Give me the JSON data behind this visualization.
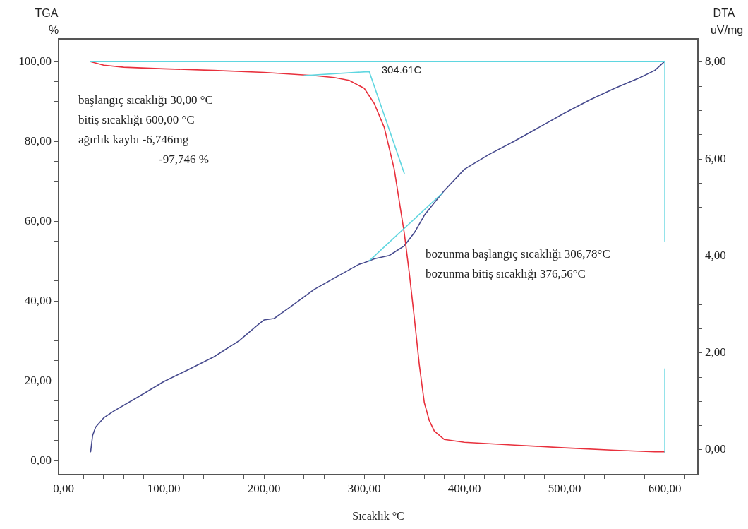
{
  "chart_data": {
    "type": "line",
    "xlabel": "Sıcaklık °C",
    "ylabel": "TGA %",
    "y2label": "DTA uV/mg",
    "marker": "none",
    "grid": false,
    "legend": false,
    "xlim": [
      -5,
      633
    ],
    "xticks": [
      {
        "value": 0,
        "label": "0,00"
      },
      {
        "value": 20,
        "label": null
      },
      {
        "value": 40,
        "label": null
      },
      {
        "value": 60,
        "label": null
      },
      {
        "value": 80,
        "label": null
      },
      {
        "value": 100,
        "label": "100,00"
      },
      {
        "value": 120,
        "label": null
      },
      {
        "value": 140,
        "label": null
      },
      {
        "value": 160,
        "label": null
      },
      {
        "value": 180,
        "label": null
      },
      {
        "value": 200,
        "label": "200,00"
      },
      {
        "value": 220,
        "label": null
      },
      {
        "value": 240,
        "label": null
      },
      {
        "value": 260,
        "label": null
      },
      {
        "value": 280,
        "label": null
      },
      {
        "value": 300,
        "label": "300,00"
      },
      {
        "value": 320,
        "label": null
      },
      {
        "value": 340,
        "label": null
      },
      {
        "value": 360,
        "label": null
      },
      {
        "value": 380,
        "label": null
      },
      {
        "value": 400,
        "label": "400,00"
      },
      {
        "value": 420,
        "label": null
      },
      {
        "value": 440,
        "label": null
      },
      {
        "value": 460,
        "label": null
      },
      {
        "value": 480,
        "label": null
      },
      {
        "value": 500,
        "label": "500,00"
      },
      {
        "value": 520,
        "label": null
      },
      {
        "value": 540,
        "label": null
      },
      {
        "value": 560,
        "label": null
      },
      {
        "value": 580,
        "label": null
      },
      {
        "value": 600,
        "label": "600,00"
      },
      {
        "value": 620,
        "label": null
      }
    ],
    "ylim": [
      -3.5,
      105.7
    ],
    "yticks": [
      {
        "value": 0,
        "label": "0,00"
      },
      {
        "value": 5,
        "label": null
      },
      {
        "value": 10,
        "label": null
      },
      {
        "value": 15,
        "label": null
      },
      {
        "value": 20,
        "label": "20,00"
      },
      {
        "value": 25,
        "label": null
      },
      {
        "value": 30,
        "label": null
      },
      {
        "value": 35,
        "label": null
      },
      {
        "value": 40,
        "label": "40,00"
      },
      {
        "value": 45,
        "label": null
      },
      {
        "value": 50,
        "label": null
      },
      {
        "value": 55,
        "label": null
      },
      {
        "value": 60,
        "label": "60,00"
      },
      {
        "value": 65,
        "label": null
      },
      {
        "value": 70,
        "label": null
      },
      {
        "value": 75,
        "label": null
      },
      {
        "value": 80,
        "label": "80,00"
      },
      {
        "value": 85,
        "label": null
      },
      {
        "value": 90,
        "label": null
      },
      {
        "value": 95,
        "label": null
      },
      {
        "value": 100,
        "label": "100,00"
      }
    ],
    "y2lim": [
      -0.51,
      8.48
    ],
    "y2ticks": [
      {
        "value": 0,
        "label": "0,00"
      },
      {
        "value": 0.5,
        "label": null
      },
      {
        "value": 1,
        "label": null
      },
      {
        "value": 1.5,
        "label": null
      },
      {
        "value": 2,
        "label": "2,00"
      },
      {
        "value": 2.5,
        "label": null
      },
      {
        "value": 3,
        "label": null
      },
      {
        "value": 3.5,
        "label": null
      },
      {
        "value": 4,
        "label": "4,00"
      },
      {
        "value": 4.5,
        "label": null
      },
      {
        "value": 5,
        "label": null
      },
      {
        "value": 5.5,
        "label": null
      },
      {
        "value": 6,
        "label": "6,00"
      },
      {
        "value": 6.5,
        "label": null
      },
      {
        "value": 7,
        "label": null
      },
      {
        "value": 7.5,
        "label": null
      },
      {
        "value": 8,
        "label": "8,00"
      }
    ],
    "series": [
      {
        "color": "#5fd6e0",
        "x": [
          27,
          600
        ],
        "values": [
          100,
          100
        ]
      },
      {
        "color": "#5fd6e0",
        "x": [
          240,
          305,
          340
        ],
        "values": [
          96.5,
          97.5,
          72
        ]
      },
      {
        "color": "#5fd6e0",
        "x": [
          600,
          600
        ],
        "values": [
          100,
          55
        ]
      },
      {
        "color": "#5fd6e0",
        "x": [
          600,
          600
        ],
        "values": [
          23,
          2
        ]
      },
      {
        "color": "#5fd6e0",
        "axis": "y2",
        "x": [
          305,
          378
        ],
        "values": [
          3.9,
          5.3
        ]
      },
      {
        "color": "#e8303c",
        "x": [
          27,
          40,
          60,
          100,
          150,
          200,
          250,
          270,
          285,
          300,
          310,
          320,
          330,
          340,
          345,
          350,
          355,
          360,
          365,
          370,
          380,
          400,
          450,
          500,
          550,
          590,
          600
        ],
        "values": [
          100,
          99.1,
          98.6,
          98.2,
          97.8,
          97.3,
          96.5,
          96,
          95.3,
          93.3,
          89.5,
          83.5,
          73,
          57,
          47,
          35.8,
          24,
          14.5,
          10,
          7.4,
          5.3,
          4.6,
          3.9,
          3.2,
          2.6,
          2.2,
          2.2
        ]
      },
      {
        "color": "#464a8e",
        "axis": "y2",
        "x": [
          27,
          29,
          32,
          40,
          50,
          75,
          100,
          125,
          150,
          175,
          195,
          200,
          210,
          225,
          250,
          275,
          295,
          300,
          310,
          325,
          340,
          350,
          360,
          370,
          380,
          400,
          425,
          450,
          475,
          500,
          525,
          550,
          575,
          590,
          600
        ],
        "values": [
          -0.04,
          0.3,
          0.47,
          0.66,
          0.8,
          1.1,
          1.41,
          1.66,
          1.92,
          2.25,
          2.6,
          2.68,
          2.71,
          2.93,
          3.31,
          3.6,
          3.83,
          3.86,
          3.94,
          4.01,
          4.21,
          4.48,
          4.84,
          5.1,
          5.35,
          5.79,
          6.1,
          6.37,
          6.66,
          6.95,
          7.22,
          7.46,
          7.68,
          7.83,
          8.02
        ]
      }
    ],
    "annotations": [
      {
        "text": "304.61C",
        "x": 304.61,
        "y": 100
      },
      "başlangıç sıcaklığı 30,00 °C",
      "bitiş sıcaklığı 600,00 °C",
      "ağırlık kaybı -6,746mg",
      "-97,746 %",
      "bozunma başlangıç sıcaklığı 306,78°C",
      "bozunma bitiş sıcaklığı 376,56°C"
    ]
  }
}
